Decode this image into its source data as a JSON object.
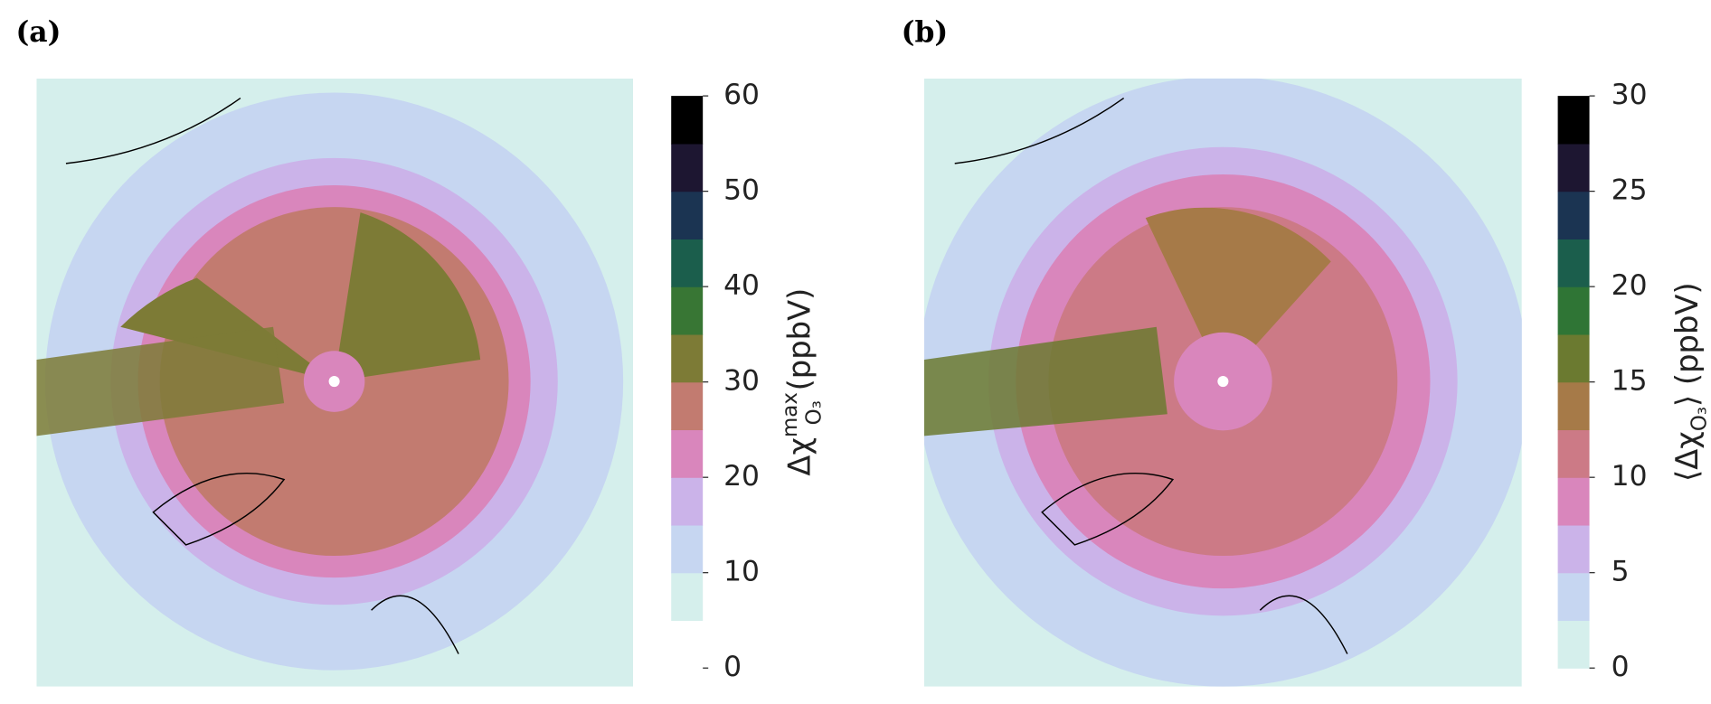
{
  "chart_data": [
    {
      "type": "map",
      "panel_label": "(a)",
      "colorbar_label": {
        "text": "Δχ",
        "sup": "max",
        "sub": "O₃",
        "unit": " (ppbV)"
      },
      "ylim": [
        0,
        60
      ],
      "yticks": [
        0,
        10,
        20,
        30,
        40,
        50,
        60
      ],
      "colors": [
        "#ffffff",
        "#d5efec",
        "#c6d6f1",
        "#cbb3e9",
        "#d986bc",
        "#c27b70",
        "#7d7b36",
        "#387634",
        "#1b5e4c",
        "#1b3452",
        "#1d1631",
        "#000000"
      ]
    },
    {
      "type": "map",
      "panel_label": "(b)",
      "colorbar_label": {
        "text": "⟨Δχ",
        "sub": "O₃",
        "unit": "⟩ (ppbV)"
      },
      "ylim": [
        0,
        30
      ],
      "yticks": [
        0,
        5,
        10,
        15,
        20,
        25,
        30
      ],
      "colors": [
        "#d5efec",
        "#c6d6f1",
        "#cbb3e9",
        "#d986bc",
        "#cc7a86",
        "#a67a48",
        "#6b7a30",
        "#2f7535",
        "#1b5e4c",
        "#1b3452",
        "#1d1631",
        "#000000"
      ]
    }
  ]
}
